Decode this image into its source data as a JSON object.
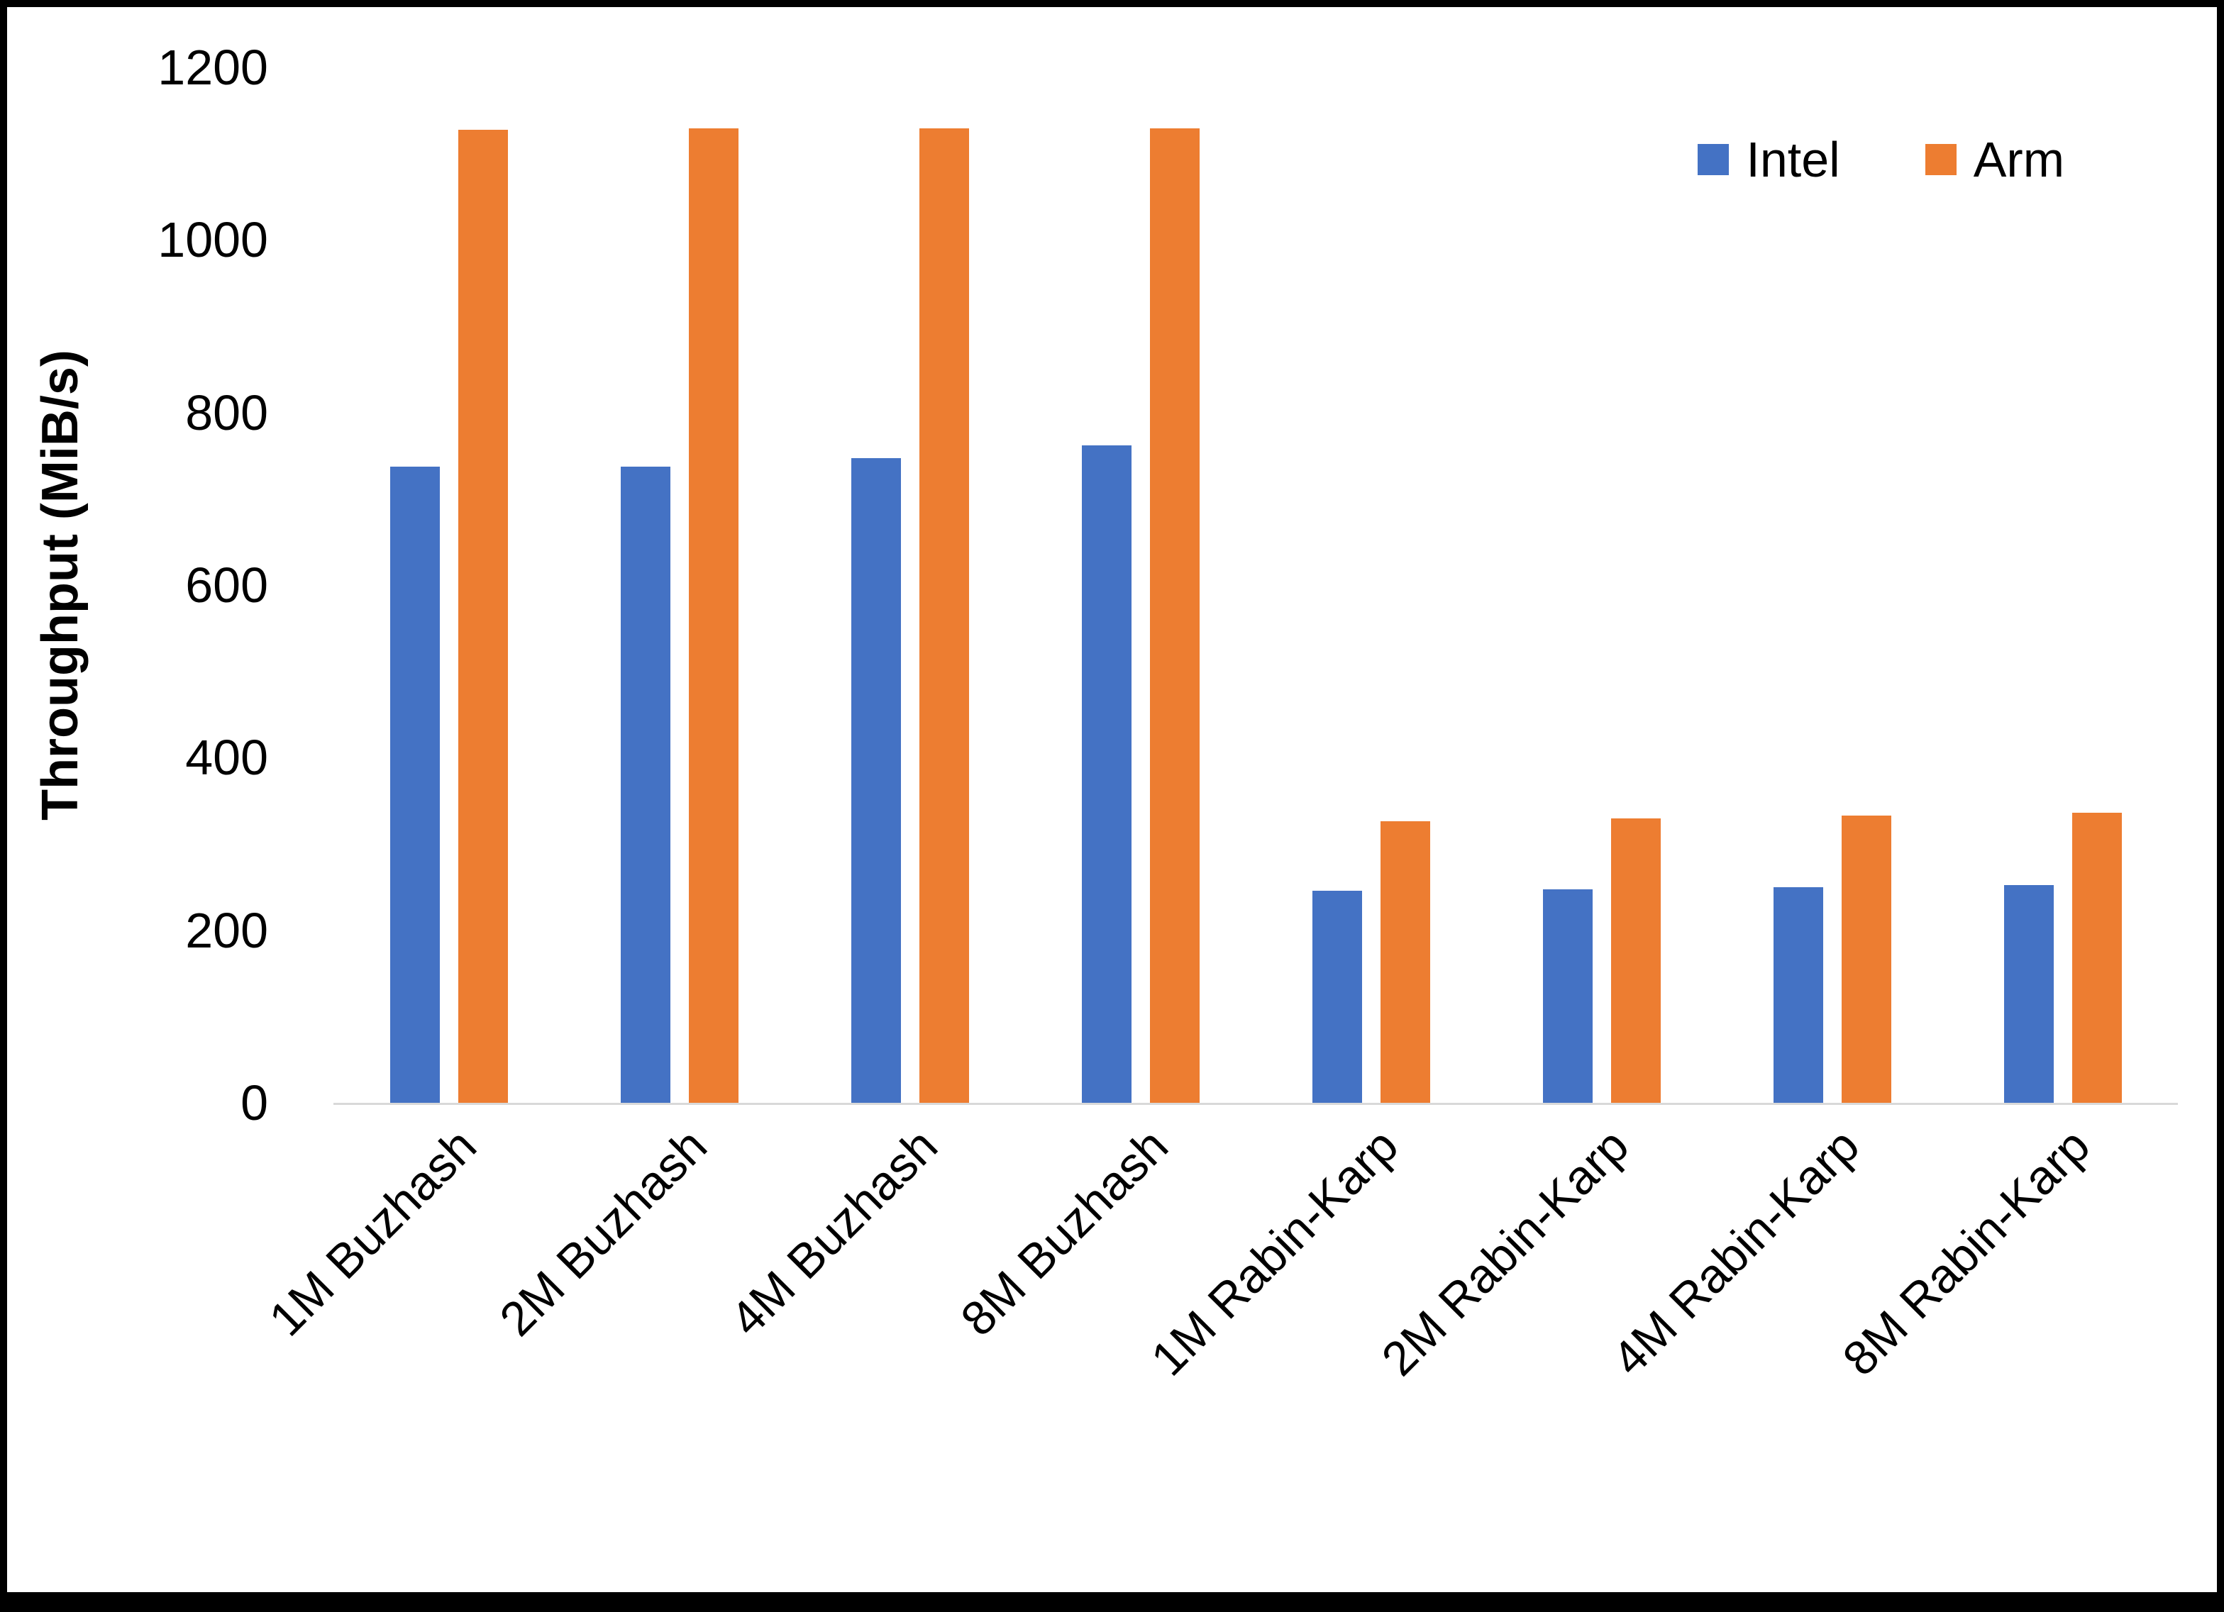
{
  "chart_data": {
    "type": "bar",
    "title": "",
    "xlabel": "",
    "ylabel": "Throughput (MiB/s)",
    "ylim": [
      0,
      1200
    ],
    "yticks": [
      0,
      200,
      400,
      600,
      800,
      1000,
      1200
    ],
    "grid": false,
    "legend_position": "top-right",
    "categories": [
      "1M Buzhash",
      "2M Buzhash",
      "4M Buzhash",
      "8M Buzhash",
      "1M Rabin-Karp",
      "2M Rabin-Karp",
      "4M Rabin-Karp",
      "8M Rabin-Karp"
    ],
    "series": [
      {
        "name": "Intel",
        "color": "#4472C4",
        "values": [
          737,
          737,
          747,
          762,
          246,
          247,
          250,
          252
        ]
      },
      {
        "name": "Arm",
        "color": "#ED7D31",
        "values": [
          1128,
          1129,
          1129,
          1129,
          326,
          330,
          333,
          336
        ]
      }
    ],
    "axis_line_color": "#d9d9d9"
  }
}
